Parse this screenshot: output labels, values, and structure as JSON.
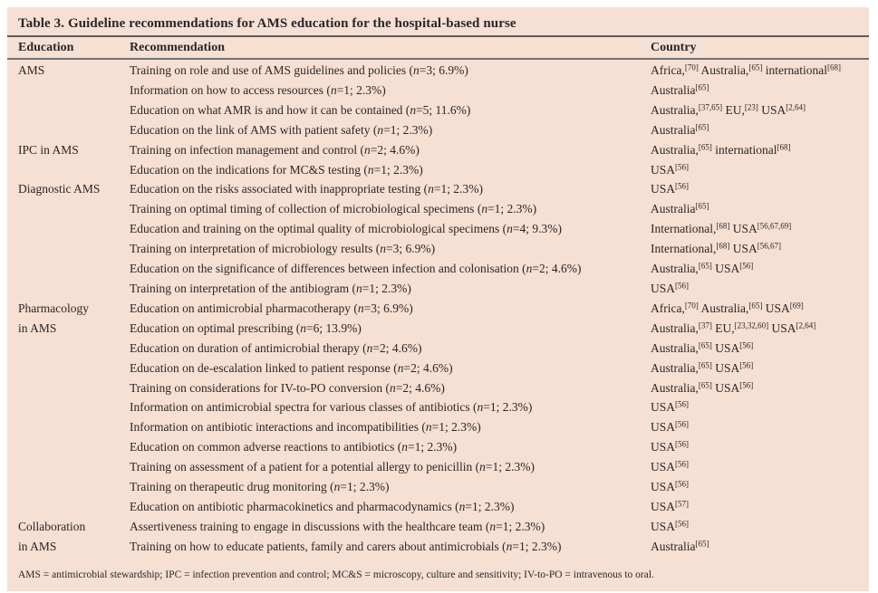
{
  "colors": {
    "panel_background": "#f6e0d3",
    "text": "#2b2627",
    "rule_thick": "#5b5c60",
    "rule_thin": "#717276"
  },
  "table": {
    "title": "Table 3. Guideline recommendations for AMS education for the hospital-based nurse",
    "columns": [
      "Education",
      "Recommendation",
      "Country"
    ],
    "rows": [
      {
        "education": "AMS",
        "recommendation": "Training on role and use of AMS guidelines and policies (n=3; 6.9%)",
        "country": "Africa,[70] Australia,[65] international[68]"
      },
      {
        "education": "",
        "recommendation": "Information on how to access resources (n=1; 2.3%)",
        "country": "Australia[65]"
      },
      {
        "education": "",
        "recommendation": "Education on what AMR is and how it can be contained (n=5; 11.6%)",
        "country": "Australia,[37,65] EU,[23] USA[2,64]"
      },
      {
        "education": "",
        "recommendation": "Education on the link of AMS with patient safety (n=1; 2.3%)",
        "country": "Australia[65]"
      },
      {
        "education": "IPC in AMS",
        "recommendation": "Training on infection management and control (n=2; 4.6%)",
        "country": "Australia,[65] international[68]"
      },
      {
        "education": "",
        "recommendation": "Education on the indications for MC&S testing (n=1; 2.3%)",
        "country": "USA[56]"
      },
      {
        "education": "Diagnostic AMS",
        "recommendation": "Education on the risks associated with inappropriate testing (n=1; 2.3%)",
        "country": "USA[56]"
      },
      {
        "education": "",
        "recommendation": "Training on optimal timing of collection of microbiological specimens (n=1; 2.3%)",
        "country": "Australia[65]"
      },
      {
        "education": "",
        "recommendation": "Education and training on the optimal quality of microbiological specimens (n=4; 9.3%)",
        "country": "International,[68] USA[56,67,69]"
      },
      {
        "education": "",
        "recommendation": "Training on interpretation of microbiology results (n=3; 6.9%)",
        "country": "International,[68] USA[56,67]"
      },
      {
        "education": "",
        "recommendation": "Education on the significance of differences between infection and colonisation (n=2; 4.6%)",
        "country": "Australia,[65] USA[56]"
      },
      {
        "education": "",
        "recommendation": "Training on interpretation of the antibiogram (n=1; 2.3%)",
        "country": "USA[56]"
      },
      {
        "education": "Pharmacology",
        "recommendation": "Education on antimicrobial pharmacotherapy (n=3; 6.9%)",
        "country": "Africa,[70] Australia,[65] USA[69]"
      },
      {
        "education": "in AMS",
        "recommendation": "Education on optimal prescribing (n=6; 13.9%)",
        "country": "Australia,[37] EU,[23,32,60] USA[2,64]"
      },
      {
        "education": "",
        "recommendation": "Education on duration of antimicrobial therapy (n=2; 4.6%)",
        "country": "Australia,[65] USA[56]"
      },
      {
        "education": "",
        "recommendation": "Education on de-escalation linked to patient response (n=2; 4.6%)",
        "country": "Australia,[65] USA[56]"
      },
      {
        "education": "",
        "recommendation": "Training on considerations for IV-to-PO conversion (n=2; 4.6%)",
        "country": "Australia,[65] USA[56]"
      },
      {
        "education": "",
        "recommendation": "Information on antimicrobial spectra for various classes of antibiotics (n=1; 2.3%)",
        "country": "USA[56]"
      },
      {
        "education": "",
        "recommendation": "Information on antibiotic interactions and incompatibilities (n=1; 2.3%)",
        "country": "USA[56]"
      },
      {
        "education": "",
        "recommendation": "Education on common adverse reactions to antibiotics (n=1; 2.3%)",
        "country": "USA[56]"
      },
      {
        "education": "",
        "recommendation": "Training on assessment of a patient for a potential allergy to penicillin (n=1; 2.3%)",
        "country": "USA[56]"
      },
      {
        "education": "",
        "recommendation": "Training on therapeutic drug monitoring (n=1; 2.3%)",
        "country": "USA[56]"
      },
      {
        "education": "",
        "recommendation": "Education on antibiotic pharmacokinetics and pharmacodynamics (n=1; 2.3%)",
        "country": "USA[57]"
      },
      {
        "education": "Collaboration",
        "recommendation": "Assertiveness training to engage in discussions with the healthcare team (n=1; 2.3%)",
        "country": "USA[56]"
      },
      {
        "education": "in AMS",
        "recommendation": "Training on how to educate patients, family and carers about antimicrobials (n=1; 2.3%)",
        "country": "Australia[65]"
      }
    ],
    "footnote": "AMS = antimicrobial stewardship; IPC = infection prevention and control; MC&S = microscopy, culture and sensitivity; IV-to-PO = intravenous to oral."
  }
}
